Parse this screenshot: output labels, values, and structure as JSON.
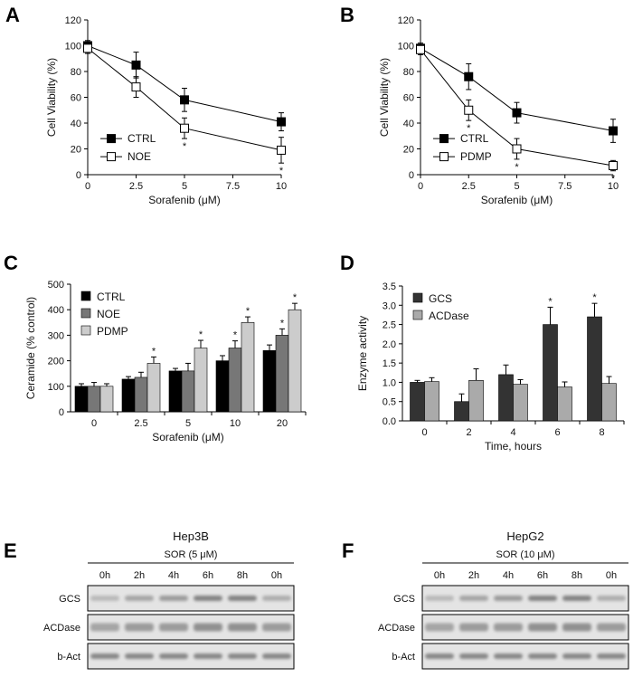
{
  "panels": {
    "A": "A",
    "B": "B",
    "C": "C",
    "D": "D",
    "E": "E",
    "F": "F"
  },
  "chart_data": [
    {
      "id": "A",
      "type": "line",
      "xlabel": "Sorafenib (μM)",
      "ylabel": "Cell Viability (%)",
      "xlim": [
        0,
        10
      ],
      "ylim": [
        0,
        120
      ],
      "xticks": [
        "0",
        "2.5",
        "5",
        "7.5",
        "10"
      ],
      "yticks": [
        "0",
        "20",
        "40",
        "60",
        "80",
        "100",
        "120"
      ],
      "x": [
        0,
        2.5,
        5,
        10
      ],
      "series": [
        {
          "name": "CTRL",
          "marker": "filled-square",
          "values": [
            100,
            85,
            58,
            41
          ],
          "errors": [
            4,
            10,
            9,
            7
          ]
        },
        {
          "name": "NOE",
          "marker": "open-square",
          "values": [
            98,
            68,
            36,
            19
          ],
          "errors": [
            4,
            8,
            8,
            10
          ]
        }
      ],
      "annotations": [
        {
          "x": 5,
          "text": "*"
        },
        {
          "x": 10,
          "text": "*"
        }
      ],
      "legend": "bottom-left"
    },
    {
      "id": "B",
      "type": "line",
      "xlabel": "Sorafenib (μM)",
      "ylabel": "Cell Viability (%)",
      "xlim": [
        0,
        10
      ],
      "ylim": [
        0,
        120
      ],
      "xticks": [
        "0",
        "2.5",
        "5",
        "7.5",
        "10"
      ],
      "yticks": [
        "0",
        "20",
        "40",
        "60",
        "80",
        "100",
        "120"
      ],
      "x": [
        0,
        2.5,
        5,
        10
      ],
      "series": [
        {
          "name": "CTRL",
          "marker": "filled-square",
          "values": [
            98,
            76,
            48,
            34
          ],
          "errors": [
            4,
            10,
            8,
            9
          ]
        },
        {
          "name": "PDMP",
          "marker": "open-square",
          "values": [
            97,
            50,
            20,
            7
          ],
          "errors": [
            4,
            8,
            8,
            4
          ]
        }
      ],
      "annotations": [
        {
          "x": 2.5,
          "text": "*"
        },
        {
          "x": 5,
          "text": "*"
        },
        {
          "x": 10,
          "text": "*"
        }
      ],
      "legend": "bottom-left"
    },
    {
      "id": "C",
      "type": "bar",
      "xlabel": "Sorafenib (μM)",
      "ylabel": "Ceramide (% control)",
      "ylim": [
        0,
        500
      ],
      "yticks": [
        "0",
        "100",
        "200",
        "300",
        "400",
        "500"
      ],
      "categories": [
        "0",
        "2.5",
        "5",
        "10",
        "20"
      ],
      "series": [
        {
          "name": "CTRL",
          "color": "#000000",
          "values": [
            100,
            128,
            160,
            200,
            240
          ],
          "errors": [
            10,
            10,
            10,
            20,
            22
          ]
        },
        {
          "name": "NOE",
          "color": "#777777",
          "values": [
            100,
            135,
            160,
            250,
            300
          ],
          "errors": [
            15,
            20,
            30,
            28,
            25
          ]
        },
        {
          "name": "PDMP",
          "color": "#cccccc",
          "values": [
            100,
            190,
            250,
            350,
            400
          ],
          "errors": [
            10,
            25,
            30,
            22,
            25
          ]
        }
      ],
      "stars": [
        [
          false,
          false,
          false,
          false,
          false
        ],
        [
          false,
          false,
          false,
          true,
          true
        ],
        [
          false,
          true,
          true,
          true,
          true
        ]
      ],
      "legend": "top-left"
    },
    {
      "id": "D",
      "type": "bar",
      "xlabel": "Time, hours",
      "ylabel": "Enzyme activity",
      "ylim": [
        0,
        3.5
      ],
      "yticks": [
        "0.0",
        "0.5",
        "1.0",
        "1.5",
        "2.0",
        "2.5",
        "3.0",
        "3.5"
      ],
      "categories": [
        "0",
        "2",
        "4",
        "6",
        "8"
      ],
      "series": [
        {
          "name": "GCS",
          "color": "#333333",
          "values": [
            1.0,
            0.5,
            1.2,
            2.5,
            2.7
          ],
          "errors": [
            0.05,
            0.2,
            0.25,
            0.45,
            0.35
          ]
        },
        {
          "name": "ACDase",
          "color": "#aaaaaa",
          "values": [
            1.02,
            1.05,
            0.95,
            0.88,
            0.97
          ],
          "errors": [
            0.1,
            0.3,
            0.12,
            0.13,
            0.18
          ]
        }
      ],
      "stars": [
        [
          false,
          false,
          false,
          true,
          true
        ],
        [
          false,
          false,
          false,
          false,
          false
        ]
      ],
      "legend": "top-left"
    }
  ],
  "blots": [
    {
      "id": "E",
      "cell_line": "Hep3B",
      "treatment": "SOR (5 μM)",
      "lanes": [
        "0h",
        "2h",
        "4h",
        "6h",
        "8h",
        "0h"
      ],
      "rows": [
        "GCS",
        "ACDase",
        "b-Act"
      ]
    },
    {
      "id": "F",
      "cell_line": "HepG2",
      "treatment": "SOR (10 μM)",
      "lanes": [
        "0h",
        "2h",
        "4h",
        "6h",
        "8h",
        "0h"
      ],
      "rows": [
        "GCS",
        "ACDase",
        "b-Act"
      ]
    }
  ]
}
